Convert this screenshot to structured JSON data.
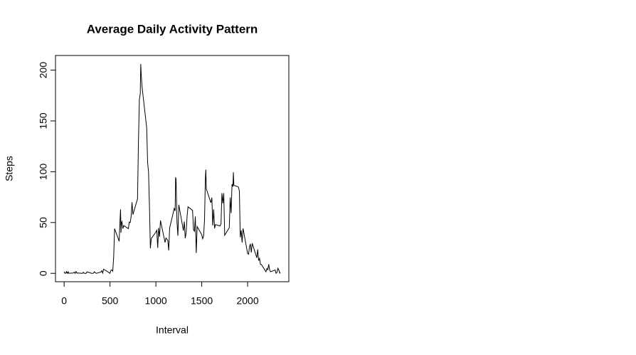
{
  "chart_data": {
    "type": "line",
    "title": "Average Daily Activity Pattern",
    "x_label": "Interval",
    "y_label": "Steps",
    "color": "#000000",
    "x": [
      0,
      5,
      10,
      15,
      20,
      25,
      30,
      35,
      40,
      45,
      50,
      55,
      100,
      110,
      120,
      130,
      140,
      150,
      200,
      210,
      220,
      230,
      240,
      250,
      300,
      310,
      320,
      330,
      340,
      350,
      400,
      410,
      420,
      430,
      440,
      450,
      500,
      510,
      520,
      530,
      540,
      550,
      600,
      610,
      615,
      620,
      625,
      630,
      640,
      650,
      700,
      710,
      720,
      730,
      740,
      750,
      800,
      810,
      820,
      830,
      835,
      840,
      850,
      900,
      910,
      920,
      930,
      940,
      950,
      1000,
      1010,
      1020,
      1030,
      1040,
      1050,
      1100,
      1110,
      1120,
      1130,
      1140,
      1150,
      1200,
      1210,
      1215,
      1220,
      1230,
      1240,
      1250,
      1300,
      1310,
      1320,
      1330,
      1340,
      1350,
      1400,
      1410,
      1420,
      1430,
      1440,
      1450,
      1500,
      1510,
      1520,
      1530,
      1540,
      1545,
      1550,
      1600,
      1610,
      1620,
      1630,
      1640,
      1650,
      1700,
      1710,
      1720,
      1730,
      1740,
      1750,
      1800,
      1810,
      1820,
      1830,
      1840,
      1845,
      1850,
      1900,
      1910,
      1920,
      1930,
      1940,
      1950,
      2000,
      2010,
      2020,
      2030,
      2040,
      2050,
      2100,
      2110,
      2120,
      2130,
      2140,
      2150,
      2200,
      2210,
      2220,
      2230,
      2240,
      2250,
      2300,
      2310,
      2320,
      2330,
      2340,
      2350,
      2355
    ],
    "values": [
      1.7,
      0.3,
      0.1,
      0.2,
      0.1,
      2.1,
      0.5,
      0.9,
      0,
      1.5,
      0.3,
      0.1,
      0.3,
      1.1,
      0,
      1.8,
      0.2,
      0.3,
      0,
      1.1,
      0,
      0,
      0,
      1.5,
      0,
      0,
      0.2,
      1.6,
      0.5,
      0,
      1.2,
      2.6,
      0.3,
      4.1,
      3.5,
      3.1,
      0,
      3,
      3.3,
      2.1,
      16,
      44,
      31.5,
      53.8,
      63,
      40,
      50,
      51,
      44,
      47,
      44,
      50.5,
      49.9,
      55.7,
      70,
      57.8,
      73.4,
      129.4,
      171,
      177,
      206,
      195.9,
      183,
      143,
      109,
      100,
      66,
      24.6,
      34.3,
      40.6,
      42.4,
      25,
      44.7,
      36,
      52,
      30.4,
      34.8,
      33.7,
      32.5,
      22.5,
      44.6,
      63.9,
      61.4,
      94.5,
      92.6,
      50.6,
      37,
      67.5,
      42,
      51,
      34.5,
      40,
      56,
      65.5,
      62,
      43,
      41.5,
      56,
      20,
      46,
      38,
      34,
      36.7,
      52,
      95,
      102,
      83,
      69.5,
      74.6,
      47,
      63,
      44.3,
      48,
      46.6,
      48.9,
      79,
      68.9,
      78.9,
      37.5,
      44.9,
      74.7,
      59.3,
      87.8,
      85.3,
      99.5,
      86.6,
      85,
      81,
      35.5,
      42.4,
      30.4,
      44.2,
      19.5,
      18.8,
      26,
      29,
      20.6,
      29.6,
      15.3,
      23.5,
      12.5,
      14.7,
      8.7,
      8.7,
      1.5,
      4.8,
      3.6,
      9,
      3.3,
      1.6,
      3.3,
      0,
      0.9,
      5,
      3.3,
      0.2,
      1.1
    ],
    "xlim": [
      -94.2,
      2449.2
    ],
    "ylim": [
      -8.25,
      214.4
    ],
    "xticks": [
      0,
      500,
      1000,
      1500,
      2000
    ],
    "yticks": [
      0,
      50,
      100,
      150,
      200
    ]
  }
}
